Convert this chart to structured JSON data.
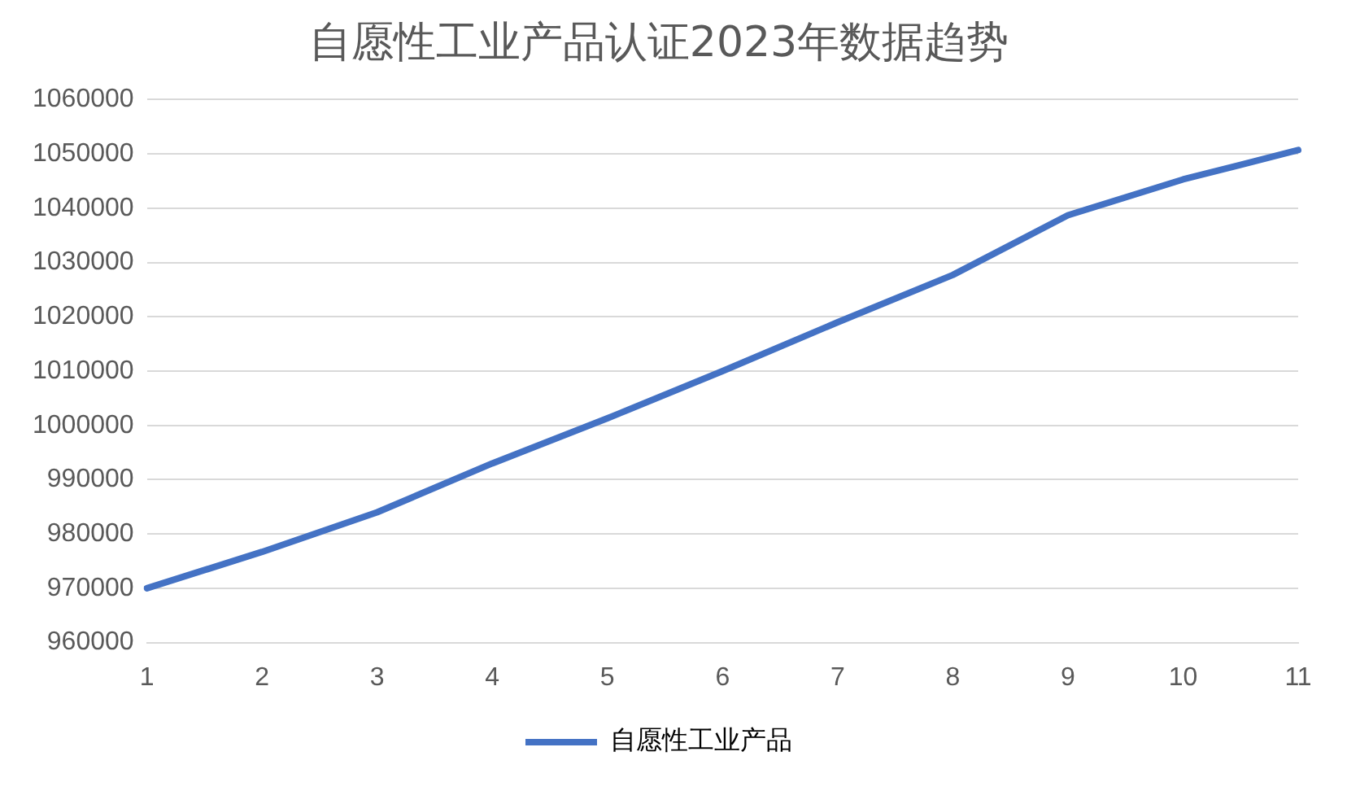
{
  "chart_data": {
    "type": "line",
    "title": "自愿性工业产品认证2023年数据趋势",
    "categories": [
      "1",
      "2",
      "3",
      "4",
      "5",
      "6",
      "7",
      "8",
      "9",
      "10",
      "11"
    ],
    "series": [
      {
        "name": "自愿性工业产品",
        "color": "#4472c4",
        "values": [
          970000,
          976700,
          984000,
          993000,
          1001300,
          1010000,
          1019000,
          1027700,
          1038700,
          1045300,
          1050700
        ]
      }
    ],
    "ylim": [
      960000,
      1060000
    ],
    "yticks": [
      960000,
      970000,
      980000,
      990000,
      1000000,
      1010000,
      1020000,
      1030000,
      1040000,
      1050000,
      1060000
    ],
    "grid": "y",
    "legend": "bottom",
    "marker": "none",
    "line_style": "solid"
  }
}
